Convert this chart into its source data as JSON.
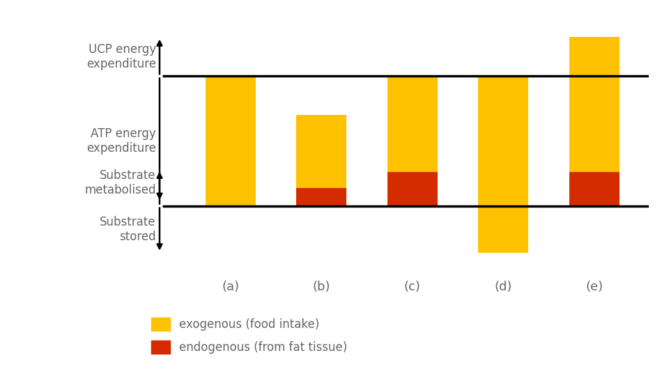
{
  "categories": [
    "(a)",
    "(b)",
    "(c)",
    "(d)",
    "(e)"
  ],
  "exo_top": [
    5.0,
    3.5,
    5.0,
    5.0,
    6.5
  ],
  "endo_height": [
    0.0,
    0.7,
    1.3,
    0.0,
    1.3
  ],
  "exo_below": [
    0.0,
    0.0,
    0.0,
    1.8,
    0.0
  ],
  "atp_line": 5.0,
  "ucp_line": 6.5,
  "baseline": 0.0,
  "color_exogenous": "#FFC200",
  "color_endogenous": "#D42B00",
  "text_color": "#666666",
  "y_ucp_label": "UCP energy\nexpenditure",
  "y_atp_label": "ATP energy\nexpenditure",
  "y_metabolised_label": "Substrate\nmetabolised",
  "y_stored_label": "Substrate\nstored",
  "legend_exogenous": "exogenous (food intake)",
  "legend_endogenous": "endogenous (from fat tissue)",
  "bar_width": 0.55,
  "ylim_min": -2.5,
  "ylim_max": 7.5,
  "xlim_min": -1.1,
  "xlim_max": 4.6,
  "x_tick_fontsize": 13,
  "label_fontsize": 12,
  "legend_fontsize": 12,
  "arrow_color": "#000000",
  "line_color": "#000000",
  "line_lw": 2.5
}
